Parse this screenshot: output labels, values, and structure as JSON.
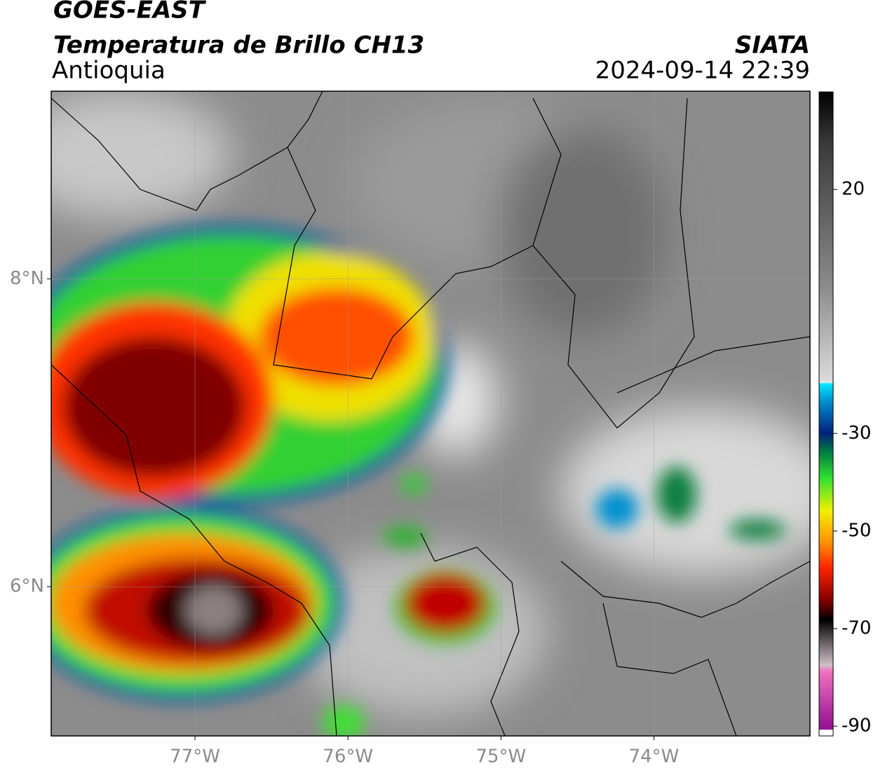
{
  "header": {
    "title": "GOES-EAST",
    "subtitle": "Temperatura de Brillo CH13",
    "region": "Antioquia",
    "source": "SIATA",
    "datetime": "2024-09-14 22:39"
  },
  "map": {
    "xlim": [
      -77.94,
      -72.98
    ],
    "ylim": [
      5.03,
      9.22
    ],
    "grid": true,
    "xticks": [
      {
        "value": -77,
        "label": "77°W"
      },
      {
        "value": -76,
        "label": "76°W"
      },
      {
        "value": -75,
        "label": "75°W"
      },
      {
        "value": -74,
        "label": "74°W"
      }
    ],
    "yticks": [
      {
        "value": 6,
        "label": "6°N"
      },
      {
        "value": 8,
        "label": "8°N"
      }
    ]
  },
  "colorbar": {
    "lim": [
      -92,
      40
    ],
    "ticks": [
      20,
      -30,
      -50,
      -70,
      -90
    ]
  }
}
